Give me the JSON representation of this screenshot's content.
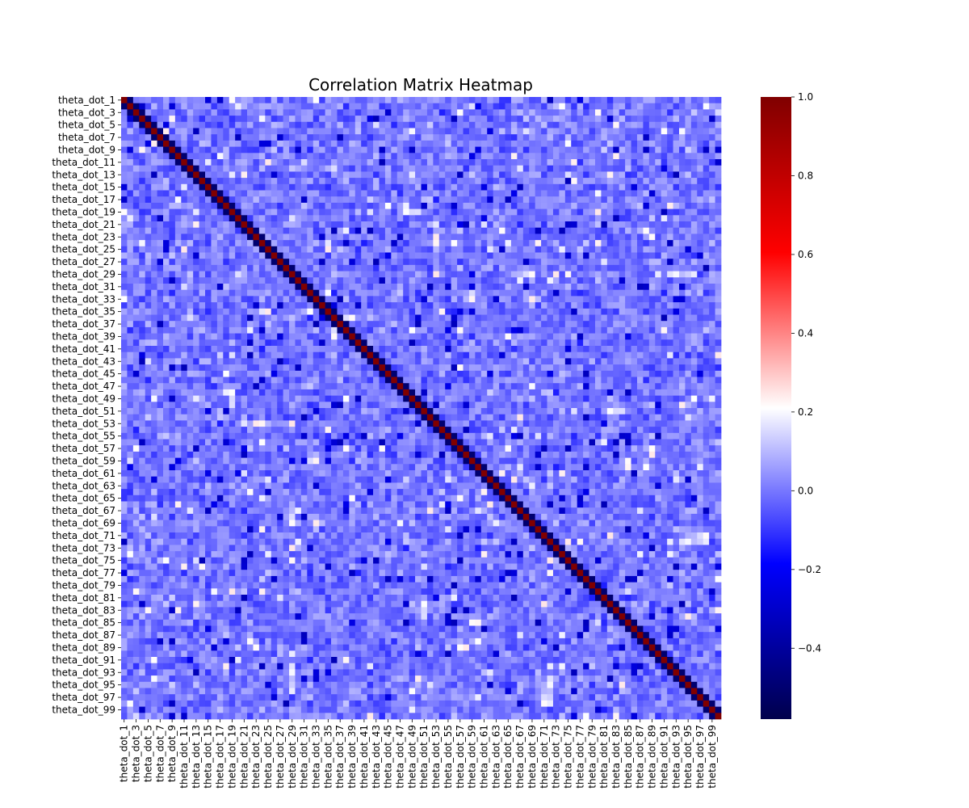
{
  "chart_data": {
    "type": "heatmap",
    "title": "Correlation Matrix Heatmap",
    "variable_prefix": "theta_dot_",
    "variable_count": 100,
    "tick_labels": [
      "theta_dot_1",
      "theta_dot_3",
      "theta_dot_5",
      "theta_dot_7",
      "theta_dot_9",
      "theta_dot_11",
      "theta_dot_13",
      "theta_dot_15",
      "theta_dot_17",
      "theta_dot_19",
      "theta_dot_21",
      "theta_dot_23",
      "theta_dot_25",
      "theta_dot_27",
      "theta_dot_29",
      "theta_dot_31",
      "theta_dot_33",
      "theta_dot_35",
      "theta_dot_37",
      "theta_dot_39",
      "theta_dot_41",
      "theta_dot_43",
      "theta_dot_45",
      "theta_dot_47",
      "theta_dot_49",
      "theta_dot_51",
      "theta_dot_53",
      "theta_dot_55",
      "theta_dot_57",
      "theta_dot_59",
      "theta_dot_61",
      "theta_dot_63",
      "theta_dot_65",
      "theta_dot_67",
      "theta_dot_69",
      "theta_dot_71",
      "theta_dot_73",
      "theta_dot_75",
      "theta_dot_77",
      "theta_dot_79",
      "theta_dot_81",
      "theta_dot_83",
      "theta_dot_85",
      "theta_dot_87",
      "theta_dot_89",
      "theta_dot_91",
      "theta_dot_93",
      "theta_dot_95",
      "theta_dot_97",
      "theta_dot_99"
    ],
    "diagonal_value": 1.0,
    "near_diagonal_value": -0.5,
    "off_diagonal_typical_range": [
      -0.15,
      0.15
    ],
    "colormap": "seismic",
    "vmin": -0.58,
    "vmax": 1.0,
    "colorbar_ticks": [
      {
        "value": 1.0,
        "label": "1.0"
      },
      {
        "value": 0.8,
        "label": "0.8"
      },
      {
        "value": 0.6,
        "label": "0.6"
      },
      {
        "value": 0.4,
        "label": "0.4"
      },
      {
        "value": 0.2,
        "label": "0.2"
      },
      {
        "value": 0.0,
        "label": "0.0"
      },
      {
        "value": -0.2,
        "label": "−0.2"
      },
      {
        "value": -0.4,
        "label": "−0.4"
      }
    ],
    "colors": {
      "darkest_blue": "#00004c",
      "blue": "#0000ff",
      "white": "#ffffff",
      "red": "#ff0000",
      "darkest_red": "#800000"
    },
    "legend_placement": "colorbar-right",
    "grid": false
  }
}
